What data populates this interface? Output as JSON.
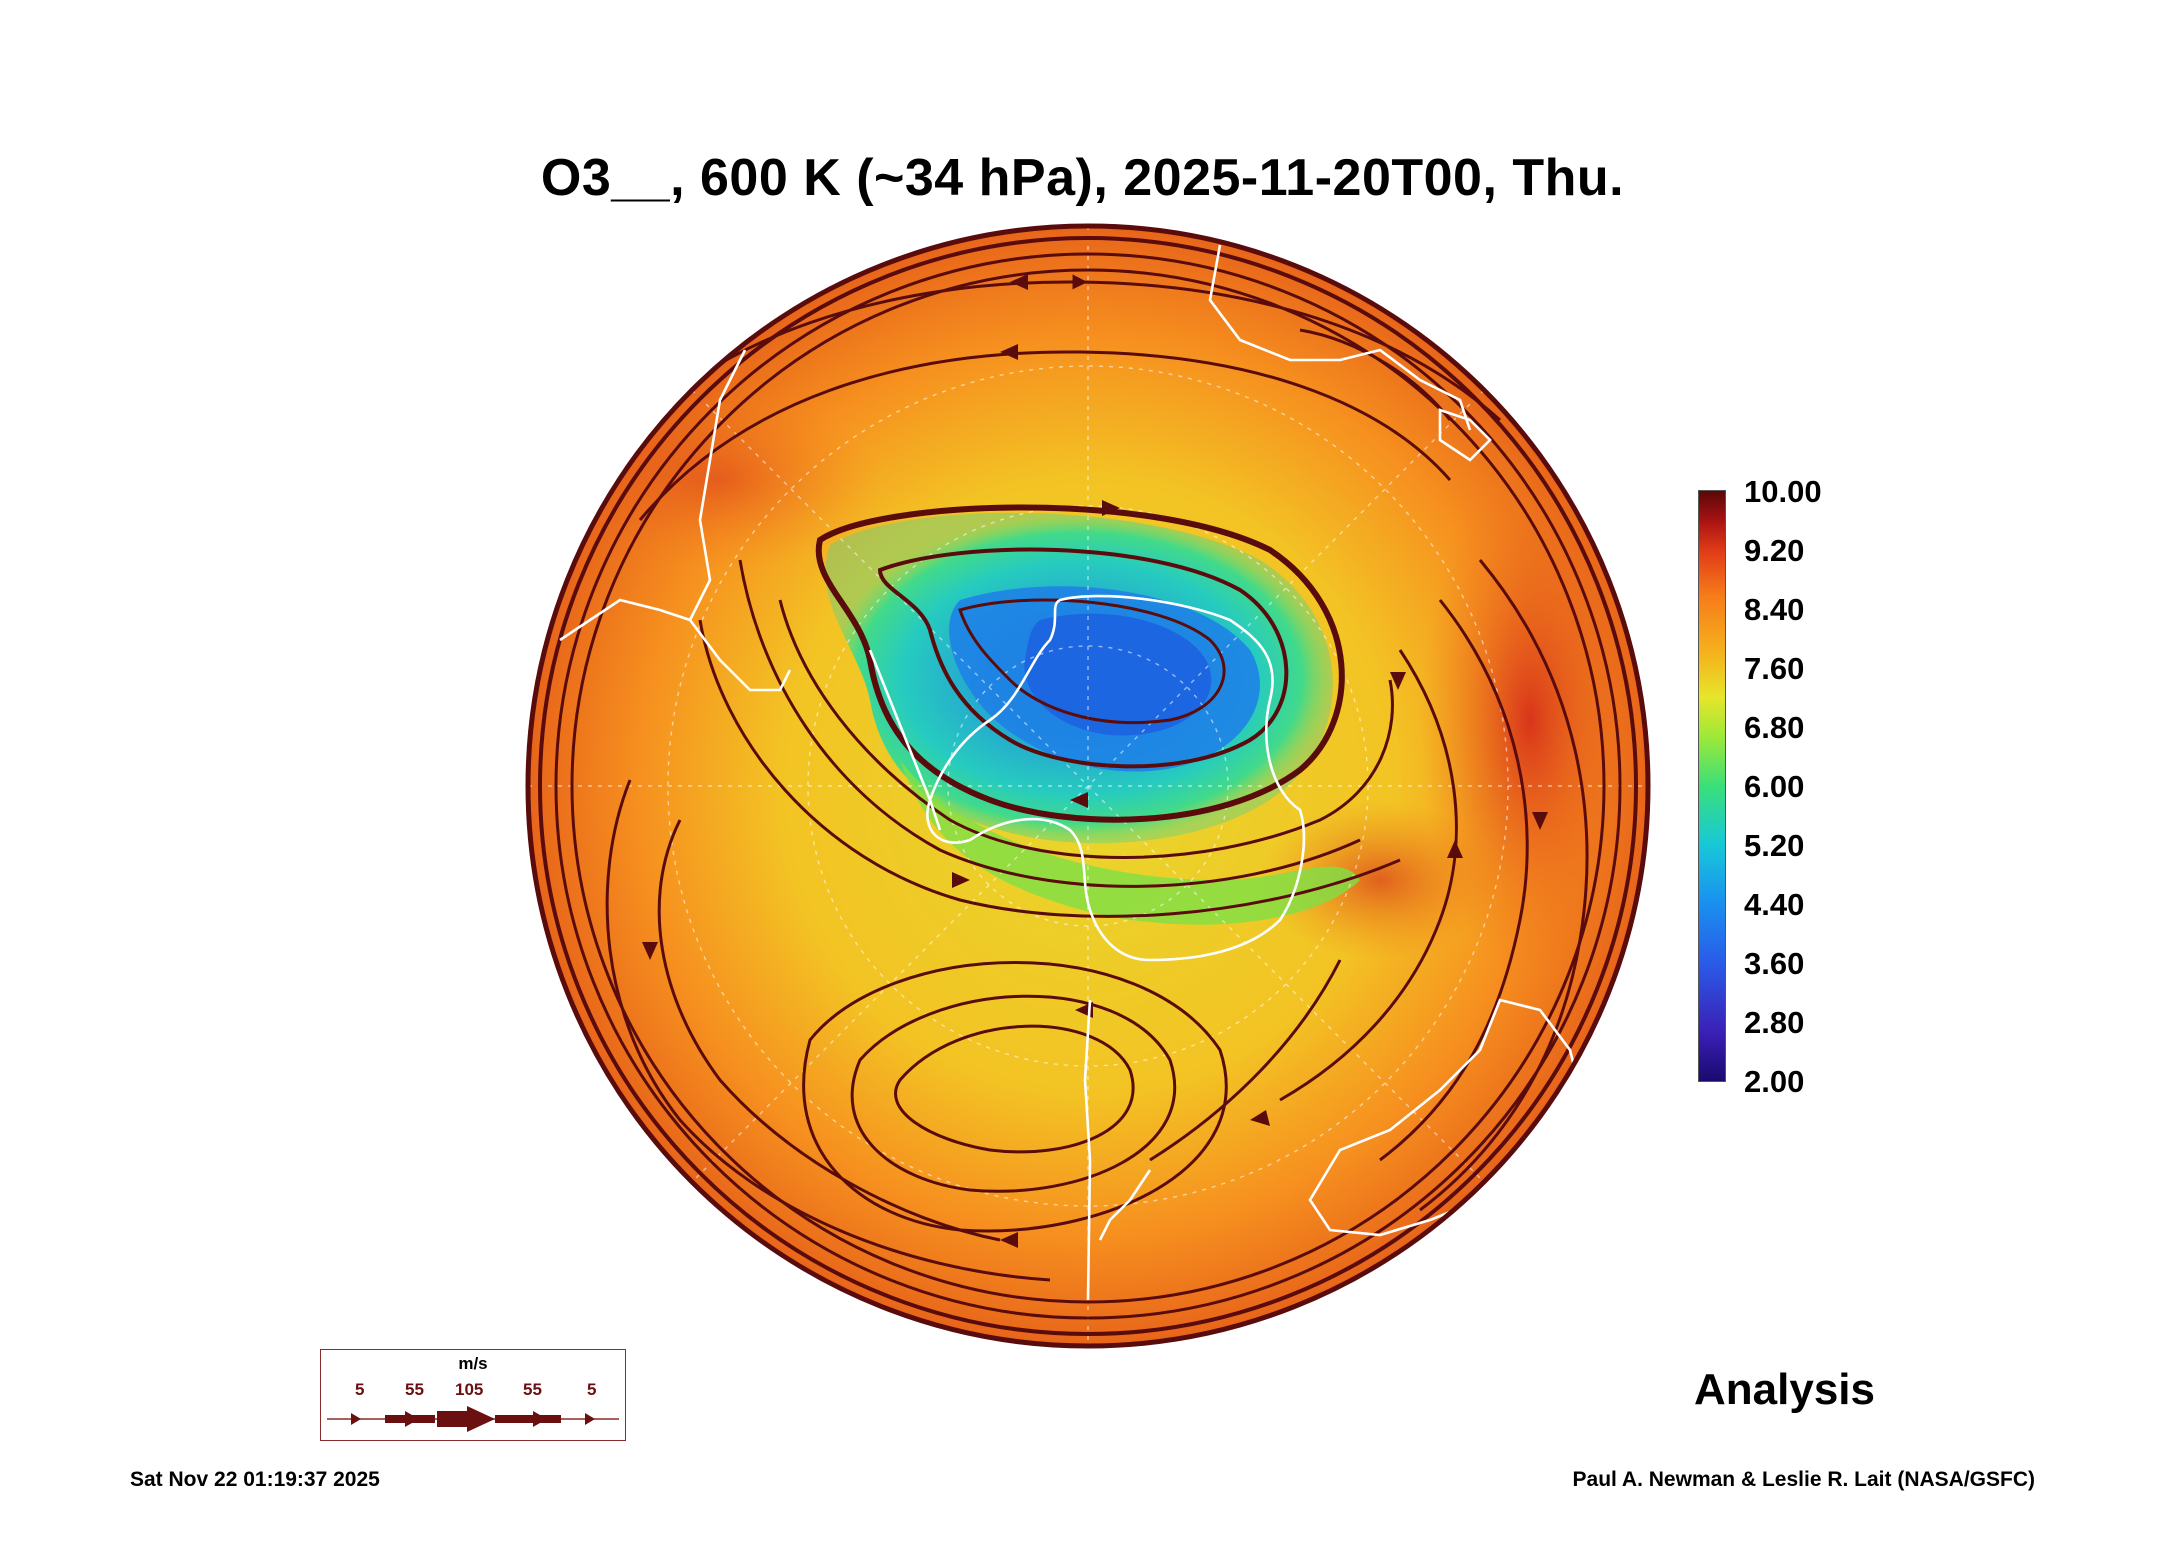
{
  "title": "O3__, 600 K (~34 hPa), 2025-11-20T00, Thu.",
  "colorbar": {
    "labels": [
      "10.00",
      "9.20",
      "8.40",
      "7.60",
      "6.80",
      "6.00",
      "5.20",
      "4.40",
      "3.60",
      "2.80",
      "2.00"
    ],
    "min": 2.0,
    "max": 10.0
  },
  "analysis_label": "Analysis",
  "timestamp": "Sat Nov 22 01:19:37 2025",
  "credit": "Paul A. Newman & Leslie R. Lait (NASA/GSFC)",
  "wind_legend": {
    "unit": "m/s",
    "values": [
      "5",
      "55",
      "105",
      "55",
      "5"
    ]
  },
  "colors": {
    "vortex_core": "#1f6fe6",
    "vortex_edge": "#1ec9c8",
    "mid": "#e7d62a",
    "outer": "#f58a22",
    "streamline": "#5a0c0c",
    "coastline": "#ffffff"
  }
}
